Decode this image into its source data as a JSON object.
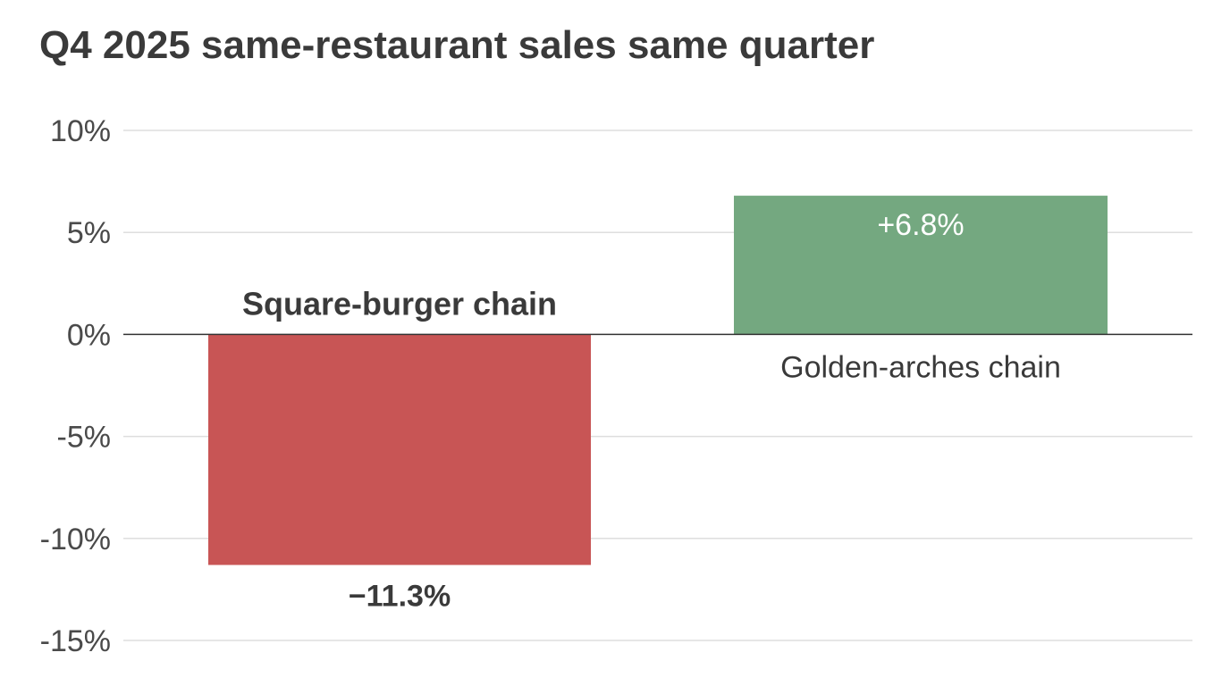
{
  "chart_data": {
    "type": "bar",
    "title": "Q4 2025 same-restaurant sales same quarter",
    "xlabel": "",
    "ylabel": "",
    "ylim": [
      -15,
      10
    ],
    "yticks": [
      10,
      5,
      0,
      -5,
      -10,
      -15
    ],
    "ytick_labels": [
      "10%",
      "5%",
      "0%",
      "-5%",
      "-10%",
      "-15%"
    ],
    "grid": true,
    "categories": [
      "Square-burger chain",
      "Golden-arches chain"
    ],
    "values": [
      -11.3,
      6.8
    ],
    "value_labels": [
      "−11.3%",
      "+6.8%"
    ],
    "colors": [
      "#c85555",
      "#74a880"
    ]
  }
}
